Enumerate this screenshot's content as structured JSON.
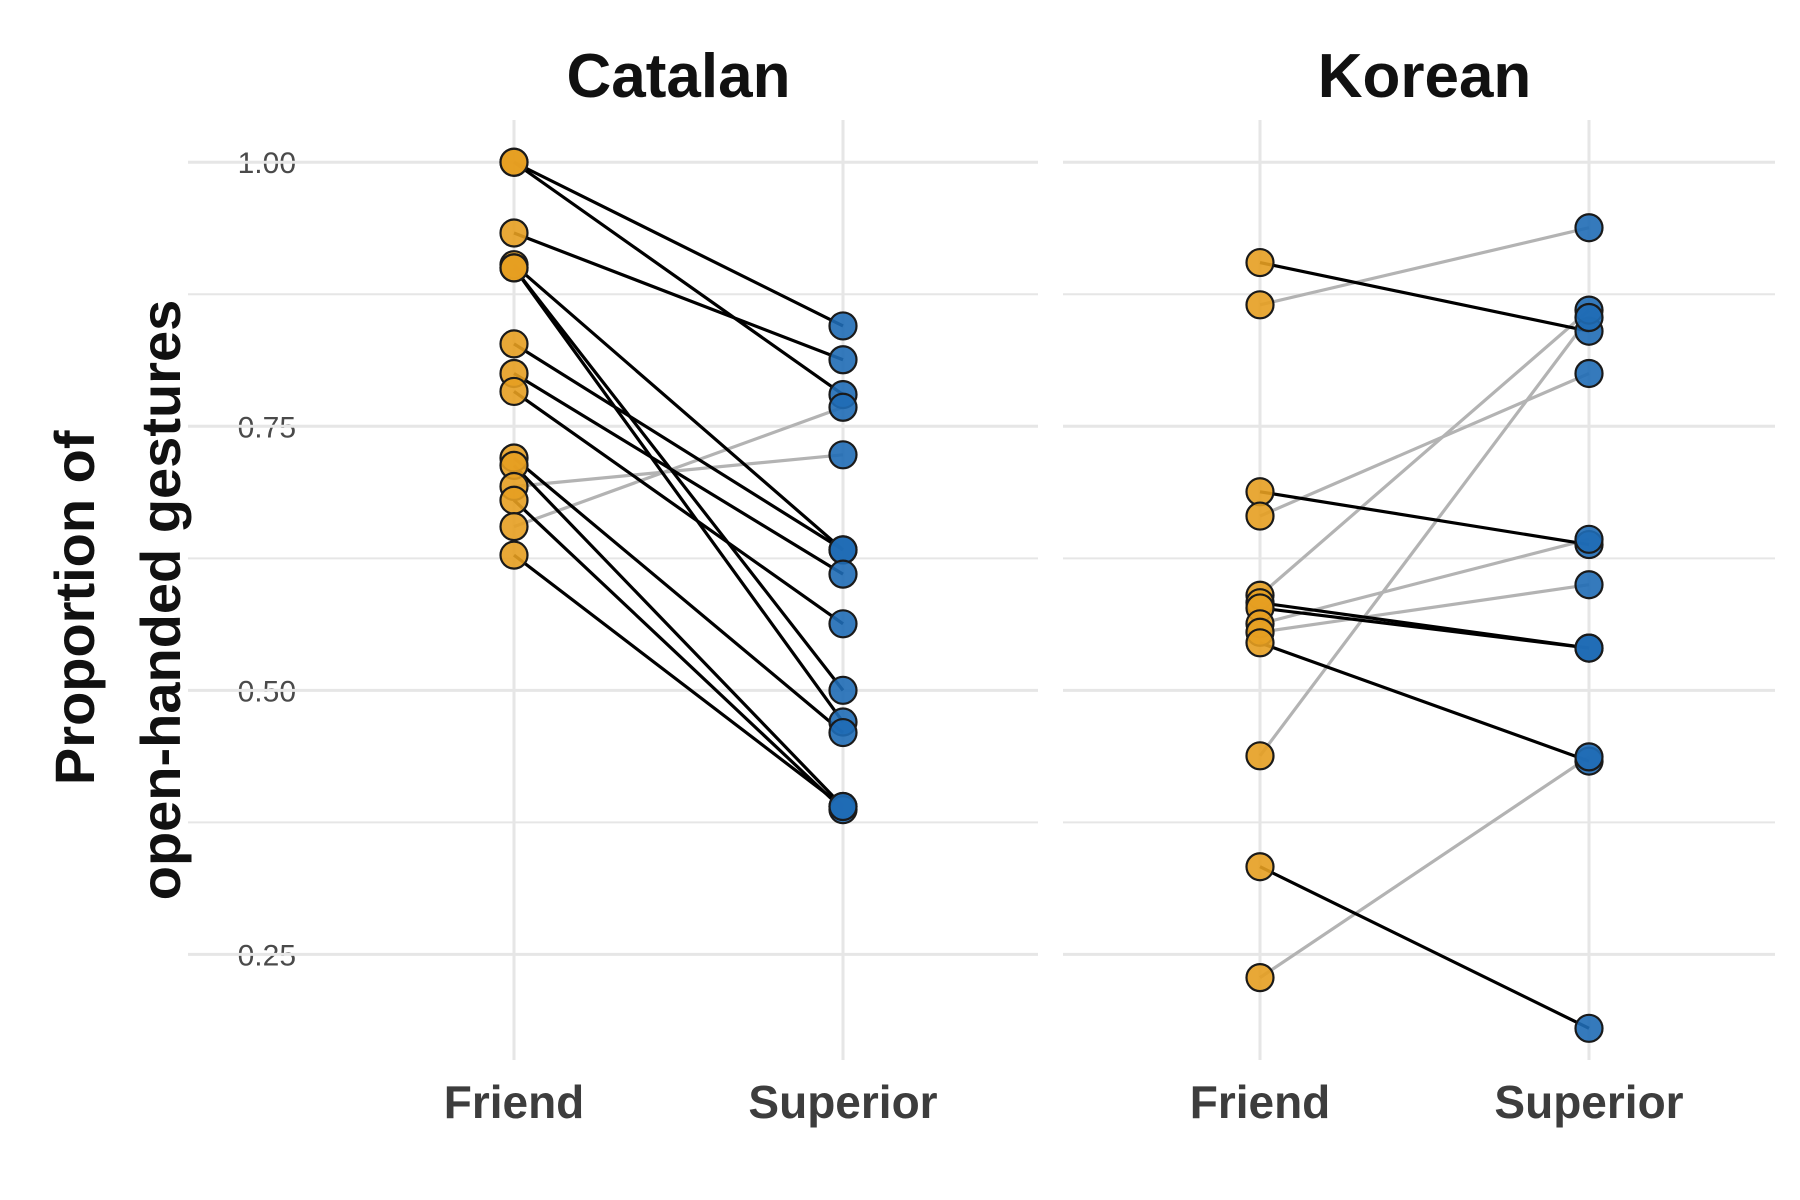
{
  "chart_data": {
    "type": "line",
    "ylabel_lines": [
      "Proportion of",
      "open-handed gestures"
    ],
    "ylim": [
      0.15,
      1.04
    ],
    "y_ticks": [
      0.25,
      0.5,
      0.75,
      1.0
    ],
    "y_tick_labels": [
      "0.25",
      "0.50",
      "0.75",
      "1.00"
    ],
    "categories": [
      "Friend",
      "Superior"
    ],
    "grid": true,
    "colors": {
      "friend": "#E69F21",
      "superior": "#1F6BB5",
      "decrease_line": "#000000",
      "increase_line": "#B3B3B3",
      "grid": "#E6E6E6"
    },
    "panels": [
      {
        "title": "Catalan",
        "pairs": [
          [
            1.0,
            0.845
          ],
          [
            1.0,
            0.78
          ],
          [
            0.933,
            0.813
          ],
          [
            0.903,
            0.633
          ],
          [
            0.9,
            0.5
          ],
          [
            0.9,
            0.47
          ],
          [
            0.828,
            0.633
          ],
          [
            0.8,
            0.61
          ],
          [
            0.783,
            0.563
          ],
          [
            0.72,
            0.46
          ],
          [
            0.713,
            0.39
          ],
          [
            0.693,
            0.723
          ],
          [
            0.68,
            0.387
          ],
          [
            0.655,
            0.768
          ],
          [
            0.628,
            0.39
          ]
        ]
      },
      {
        "title": "Korean",
        "pairs": [
          [
            0.905,
            0.84
          ],
          [
            0.865,
            0.938
          ],
          [
            0.688,
            0.638
          ],
          [
            0.665,
            0.8
          ],
          [
            0.59,
            0.86
          ],
          [
            0.583,
            0.54
          ],
          [
            0.578,
            0.54
          ],
          [
            0.563,
            0.643
          ],
          [
            0.555,
            0.6
          ],
          [
            0.545,
            0.433
          ],
          [
            0.438,
            0.853
          ],
          [
            0.333,
            0.18
          ],
          [
            0.228,
            0.437
          ]
        ]
      }
    ]
  }
}
